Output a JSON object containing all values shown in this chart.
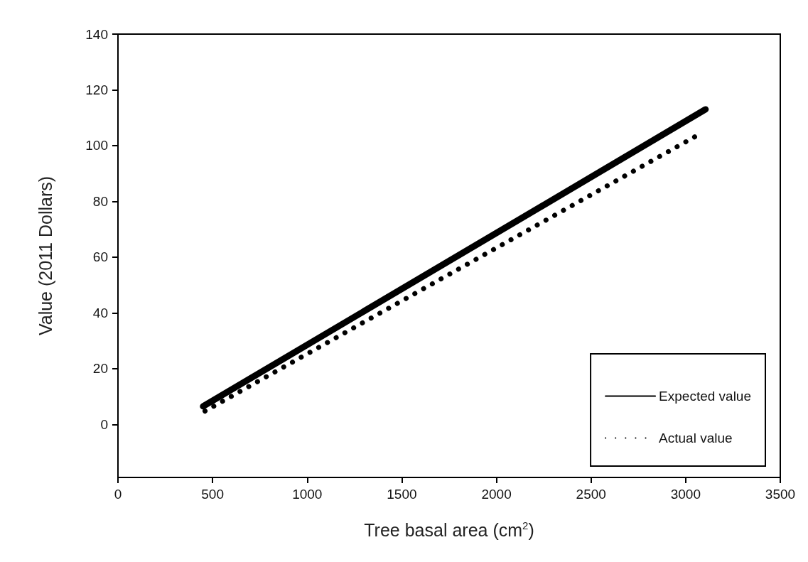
{
  "chart_data": {
    "type": "line",
    "xlabel": "Tree basal area (cm$^{2}$)",
    "ylabel": "Value (2011 Dollars)",
    "xlim": [
      0,
      3500
    ],
    "xticks": [
      0,
      500,
      1000,
      1500,
      2000,
      2500,
      3000,
      3500
    ],
    "ylim": [
      -19,
      140
    ],
    "yticks": [
      0,
      20,
      40,
      60,
      80,
      100,
      120,
      140
    ],
    "series": [
      {
        "name": "Expected value",
        "color": "#000000",
        "line_style": "solid",
        "x": [
          450,
          3105
        ],
        "values": [
          6.5,
          113
        ]
      },
      {
        "name": "Actual value",
        "color": "#000000",
        "line_style": "dotted",
        "x": [
          460,
          3070
        ],
        "values": [
          4.8,
          104
        ]
      }
    ],
    "legend": "bottom right",
    "grid": false,
    "marker": "none"
  }
}
